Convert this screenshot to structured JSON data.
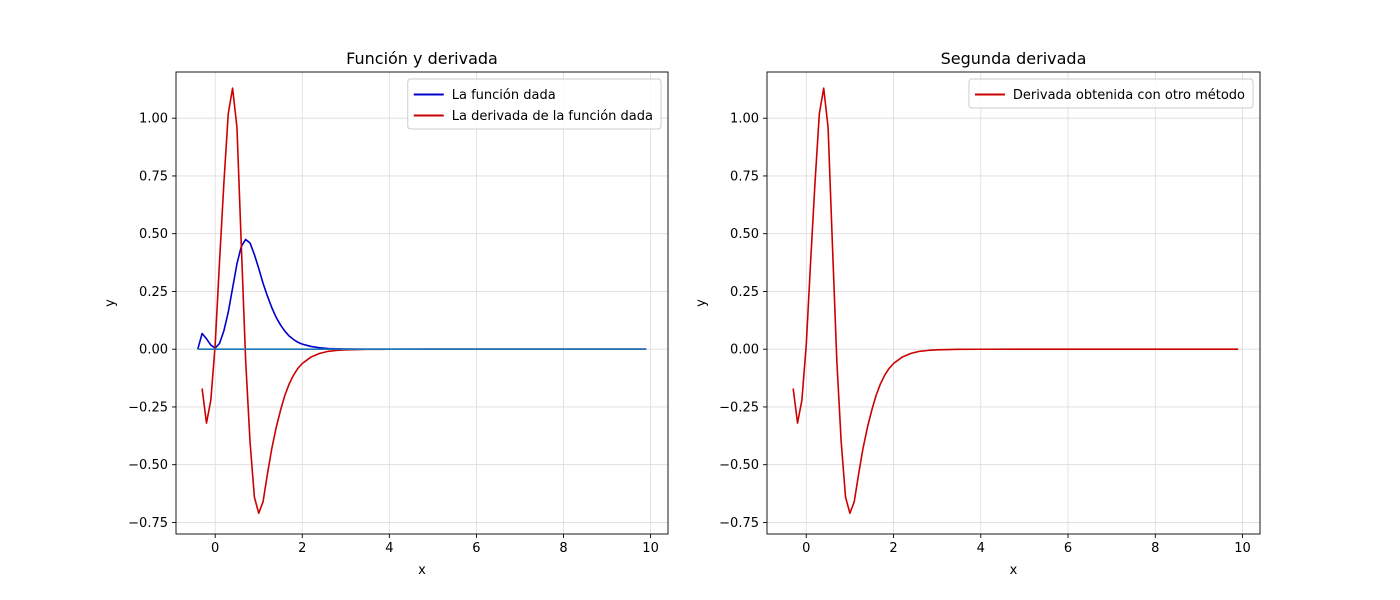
{
  "chart_data": [
    {
      "type": "line",
      "title": "Función y derivada",
      "xlabel": "x",
      "ylabel": "y",
      "xlim": [
        -0.9,
        10.4
      ],
      "ylim": [
        -0.8,
        1.2
      ],
      "xticks": [
        0,
        2,
        4,
        6,
        8,
        10
      ],
      "xtick_labels": [
        "0",
        "2",
        "4",
        "6",
        "8",
        "10"
      ],
      "yticks": [
        -0.75,
        -0.5,
        -0.25,
        0.0,
        0.25,
        0.5,
        0.75,
        1.0
      ],
      "ytick_labels": [
        "−0.75",
        "−0.50",
        "−0.25",
        "0.00",
        "0.25",
        "0.50",
        "0.75",
        "1.00"
      ],
      "grid": true,
      "legend_position": "top-right",
      "series": [
        {
          "name": "La función dada",
          "color": "#0000cc",
          "x": [
            -0.4,
            -0.3,
            -0.2,
            -0.1,
            0.0,
            0.1,
            0.2,
            0.3,
            0.4,
            0.5,
            0.6,
            0.7,
            0.8,
            0.9,
            1.0,
            1.1,
            1.2,
            1.3,
            1.4,
            1.5,
            1.6,
            1.7,
            1.8,
            1.9,
            2.0,
            2.2,
            2.4,
            2.6,
            2.8,
            3.0,
            3.5,
            4.0,
            5.0,
            6.0,
            7.0,
            8.0,
            9.0,
            9.9
          ],
          "y": [
            0.0,
            0.068,
            0.045,
            0.018,
            0.005,
            0.025,
            0.08,
            0.16,
            0.265,
            0.37,
            0.445,
            0.475,
            0.46,
            0.41,
            0.35,
            0.285,
            0.23,
            0.18,
            0.138,
            0.105,
            0.078,
            0.057,
            0.042,
            0.03,
            0.022,
            0.012,
            0.006,
            0.003,
            0.0015,
            0.0008,
            0.0002,
            0.0,
            0.0,
            0.0,
            0.0,
            0.0,
            0.0,
            0.0
          ]
        },
        {
          "name": "La derivada de la función dada",
          "color": "#cc0000",
          "x": [
            -0.3,
            -0.2,
            -0.1,
            0.0,
            0.1,
            0.2,
            0.3,
            0.4,
            0.5,
            0.6,
            0.7,
            0.8,
            0.9,
            1.0,
            1.1,
            1.2,
            1.3,
            1.4,
            1.5,
            1.6,
            1.7,
            1.8,
            1.9,
            2.0,
            2.2,
            2.4,
            2.6,
            2.8,
            3.0,
            3.5,
            4.0,
            5.0,
            6.0,
            7.0,
            8.0,
            9.0,
            9.9
          ],
          "y": [
            -0.17,
            -0.32,
            -0.22,
            0.02,
            0.38,
            0.72,
            1.02,
            1.13,
            0.96,
            0.45,
            -0.05,
            -0.4,
            -0.64,
            -0.71,
            -0.66,
            -0.54,
            -0.43,
            -0.34,
            -0.265,
            -0.2,
            -0.15,
            -0.112,
            -0.083,
            -0.062,
            -0.034,
            -0.018,
            -0.009,
            -0.005,
            -0.0025,
            -0.0006,
            -0.0002,
            0.0,
            0.0,
            0.0,
            0.0,
            0.0,
            0.0
          ]
        },
        {
          "color": "#1f77b4",
          "x": [
            -0.4,
            9.9
          ],
          "y": [
            0.0,
            0.0
          ]
        }
      ],
      "legend_series": [
        0,
        1
      ]
    },
    {
      "type": "line",
      "title": "Segunda derivada",
      "xlabel": "x",
      "ylabel": "y",
      "xlim": [
        -0.9,
        10.4
      ],
      "ylim": [
        -0.8,
        1.2
      ],
      "xticks": [
        0,
        2,
        4,
        6,
        8,
        10
      ],
      "xtick_labels": [
        "0",
        "2",
        "4",
        "6",
        "8",
        "10"
      ],
      "yticks": [
        -0.75,
        -0.5,
        -0.25,
        0.0,
        0.25,
        0.5,
        0.75,
        1.0
      ],
      "ytick_labels": [
        "−0.75",
        "−0.50",
        "−0.25",
        "0.00",
        "0.25",
        "0.50",
        "0.75",
        "1.00"
      ],
      "grid": true,
      "legend_position": "top-right",
      "series": [
        {
          "name": "Derivada obtenida con otro método",
          "color": "#cc0000",
          "x": [
            -0.3,
            -0.2,
            -0.1,
            0.0,
            0.1,
            0.2,
            0.3,
            0.4,
            0.5,
            0.6,
            0.7,
            0.8,
            0.9,
            1.0,
            1.1,
            1.2,
            1.3,
            1.4,
            1.5,
            1.6,
            1.7,
            1.8,
            1.9,
            2.0,
            2.2,
            2.4,
            2.6,
            2.8,
            3.0,
            3.5,
            4.0,
            5.0,
            6.0,
            7.0,
            8.0,
            9.0,
            9.9
          ],
          "y": [
            -0.17,
            -0.32,
            -0.22,
            0.02,
            0.38,
            0.72,
            1.02,
            1.13,
            0.96,
            0.45,
            -0.05,
            -0.4,
            -0.64,
            -0.71,
            -0.66,
            -0.54,
            -0.43,
            -0.34,
            -0.265,
            -0.2,
            -0.15,
            -0.112,
            -0.083,
            -0.062,
            -0.034,
            -0.018,
            -0.009,
            -0.005,
            -0.0025,
            -0.0006,
            -0.0002,
            0.0,
            0.0,
            0.0,
            0.0,
            0.0,
            0.0
          ]
        }
      ],
      "legend_series": [
        0
      ]
    }
  ]
}
